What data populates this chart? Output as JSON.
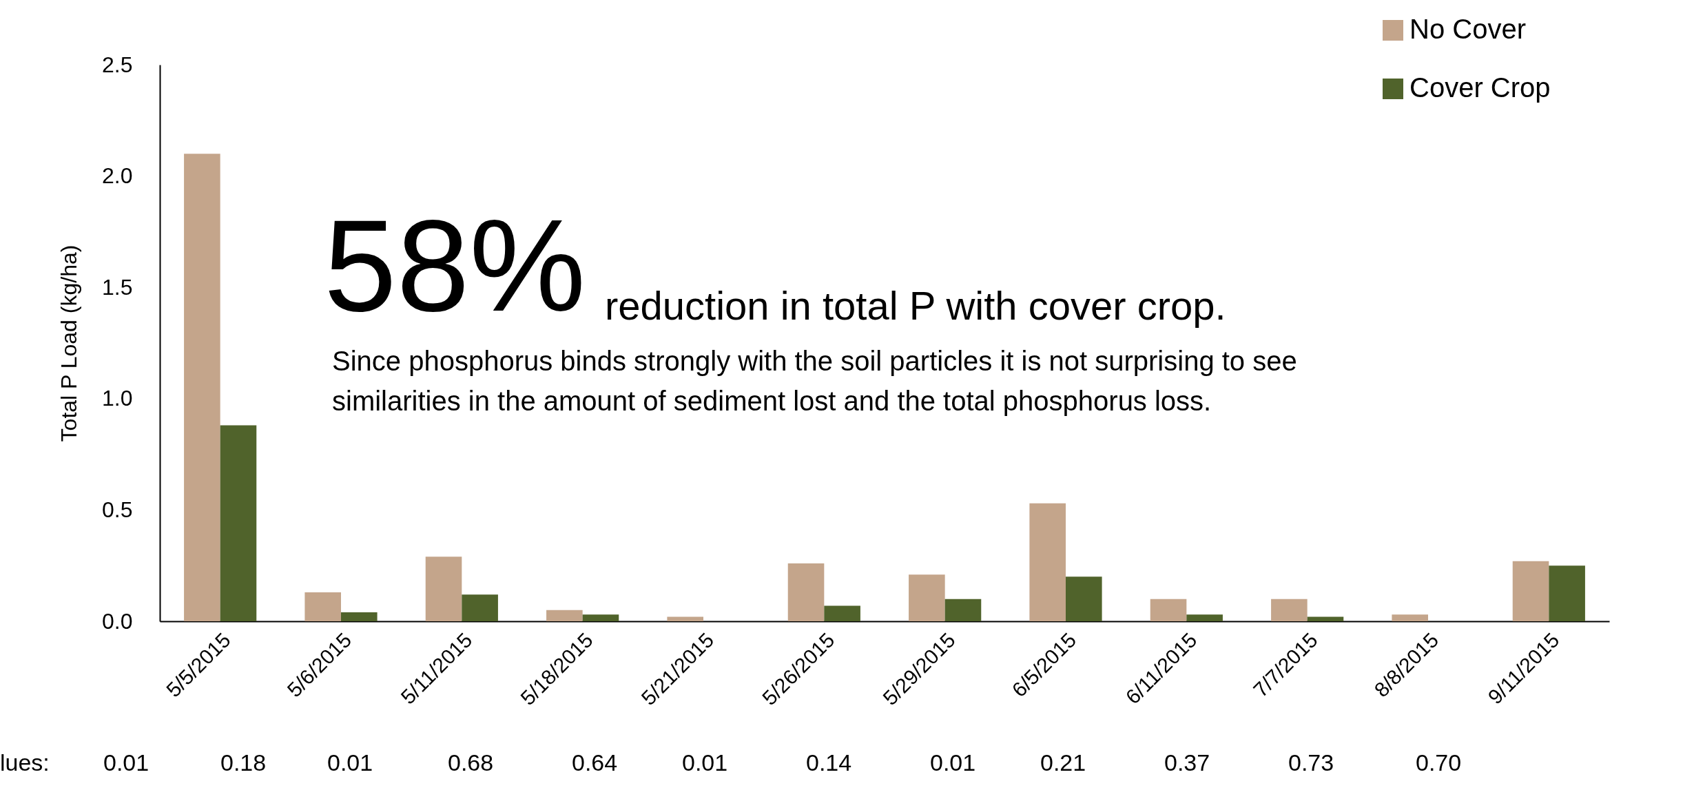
{
  "chart_data": {
    "type": "bar",
    "ylabel": "Total P Load (kg/ha)",
    "categories": [
      "5/5/2015",
      "5/6/2015",
      "5/11/2015",
      "5/18/2015",
      "5/21/2015",
      "5/26/2015",
      "5/29/2015",
      "6/5/2015",
      "6/11/2015",
      "7/7/2015",
      "8/8/2015",
      "9/11/2015"
    ],
    "series": [
      {
        "name": "No Cover",
        "color": "#c4a58b",
        "values": [
          2.1,
          0.13,
          0.29,
          0.05,
          0.02,
          0.26,
          0.21,
          0.53,
          0.1,
          0.1,
          0.03,
          0.27
        ]
      },
      {
        "name": "Cover Crop",
        "color": "#50632b",
        "values": [
          0.88,
          0.04,
          0.12,
          0.03,
          0.0,
          0.07,
          0.1,
          0.2,
          0.03,
          0.02,
          0.0,
          0.25
        ]
      }
    ],
    "ylim": [
      0,
      2.5
    ],
    "yticks": [
      {
        "value": 0,
        "label": "0.0"
      },
      0.5,
      {
        "value": 1,
        "label": "1.0"
      },
      1.5,
      {
        "value": 2,
        "label": "2.0"
      },
      2.5
    ],
    "grid": false,
    "legend": "top right",
    "annotations": [
      "58%",
      "reduction in total P with cover crop.",
      "Since phosphorus binds strongly with the soil particles it is not surprising to see similarities in the amount of sediment lost and the total phosphorus loss.",
      "lues:",
      "0.01",
      "0.18",
      "0.01",
      "0.68",
      "0.64",
      "0.01",
      "0.14",
      "0.01",
      "0.21",
      "0.37",
      "0.73",
      "0.70"
    ]
  }
}
